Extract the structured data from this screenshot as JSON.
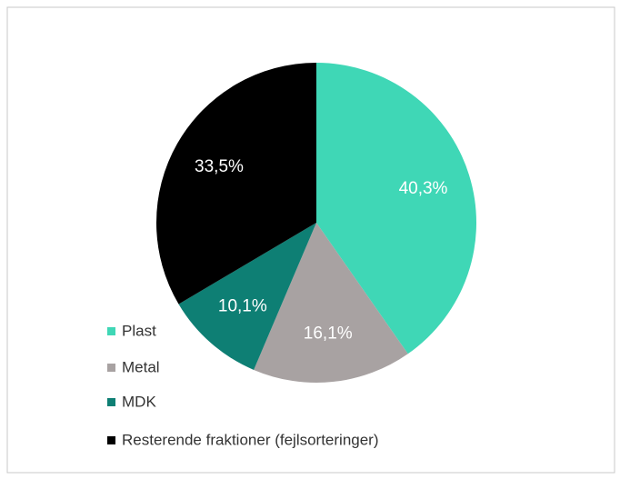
{
  "chart_data": {
    "type": "pie",
    "categories": [
      "Plast",
      "Metal",
      "MDK",
      "Resterende fraktioner (fejlsorteringer)"
    ],
    "values": [
      40.3,
      16.1,
      10.1,
      33.5
    ],
    "value_labels": [
      "40,3%",
      "16,1%",
      "10,1%",
      "33,5%"
    ],
    "colors": [
      "#3fd7b6",
      "#a8a2a2",
      "#0e7f74",
      "#000000"
    ],
    "legend": "bottom-left"
  }
}
